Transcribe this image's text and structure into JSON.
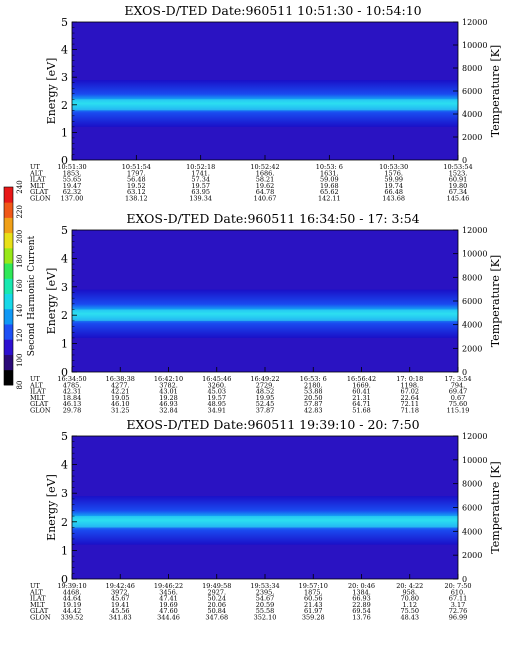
{
  "figure": {
    "colorbar": {
      "label": "Second Harmonic Current",
      "ticks": [
        "240",
        "220",
        "200",
        "180",
        "160",
        "140",
        "120",
        "100",
        "80"
      ]
    }
  },
  "chart_data": [
    {
      "type": "heatmap",
      "title": "EXOS-D/TED   Date:960511   10:51:30 - 10:54:10",
      "ylabel": "Energy [eV]",
      "ylabel_right": "Temperature [K]",
      "ylim": [
        0,
        5
      ],
      "y_ticks": [
        "0",
        "1",
        "2",
        "3",
        "4",
        "5"
      ],
      "ylim_right": [
        0,
        12000
      ],
      "y_ticks_right": [
        "0",
        "2000",
        "4000",
        "6000",
        "8000",
        "10000",
        "12000"
      ],
      "row_labels": [
        "UT",
        "ALT",
        "ILAT",
        "MLT",
        "GLAT",
        "GLON"
      ],
      "columns": [
        [
          "10:51:30",
          "1853.",
          "55.65",
          "19.47",
          "62.32",
          "137.00"
        ],
        [
          "10:51:54",
          "1797.",
          "56.48",
          "19.52",
          "63.12",
          "138.12"
        ],
        [
          "10:52:18",
          "1741.",
          "57.34",
          "19.57",
          "63.95",
          "139.34"
        ],
        [
          "10:52:42",
          "1686.",
          "58.21",
          "19.62",
          "64.78",
          "140.67"
        ],
        [
          "10:53: 6",
          "1631.",
          "59.09",
          "19.68",
          "65.62",
          "142.11"
        ],
        [
          "10:53:30",
          "1576.",
          "59.99",
          "19.74",
          "66.48",
          "143.68"
        ],
        [
          "10:53:54",
          "1523.",
          "60.91",
          "19.80",
          "67.34",
          "145.46"
        ]
      ]
    },
    {
      "type": "heatmap",
      "title": "EXOS-D/TED   Date:960511   16:34:50 - 17: 3:54",
      "ylabel": "Energy [eV]",
      "ylabel_right": "Temperature [K]",
      "ylim": [
        0,
        5
      ],
      "y_ticks": [
        "0",
        "1",
        "2",
        "3",
        "4",
        "5"
      ],
      "ylim_right": [
        0,
        12000
      ],
      "y_ticks_right": [
        "0",
        "2000",
        "4000",
        "6000",
        "8000",
        "10000",
        "12000"
      ],
      "row_labels": [
        "UT",
        "ALT",
        "ILAT",
        "MLT",
        "GLAT",
        "GLON"
      ],
      "columns": [
        [
          "16:34:50",
          "4785.",
          "42.31",
          "18.84",
          "46.13",
          "29.78"
        ],
        [
          "16:38:38",
          "4277.",
          "42.21",
          "19.05",
          "46.10",
          "31.25"
        ],
        [
          "16:42:10",
          "3782.",
          "43.01",
          "19.28",
          "46.93",
          "32.84"
        ],
        [
          "16:45:46",
          "3260.",
          "45.03",
          "19.57",
          "48.95",
          "34.91"
        ],
        [
          "16:49:22",
          "2729.",
          "48.52",
          "19.95",
          "52.45",
          "37.87"
        ],
        [
          "16:53: 6",
          "2180.",
          "53.88",
          "20.50",
          "57.87",
          "42.83"
        ],
        [
          "16:56:42",
          "1669.",
          "60.41",
          "21.31",
          "64.71",
          "51.68"
        ],
        [
          "17: 0:18",
          "1198.",
          "67.02",
          "22.64",
          "72.11",
          "71.18"
        ],
        [
          "17: 3:54",
          "794.",
          "69.47",
          "0.67",
          "75.60",
          "115.19"
        ]
      ]
    },
    {
      "type": "heatmap",
      "title": "EXOS-D/TED   Date:960511   19:39:10 - 20: 7:50",
      "ylabel": "Energy [eV]",
      "ylabel_right": "Temperature [K]",
      "ylim": [
        0,
        5
      ],
      "y_ticks": [
        "0",
        "1",
        "2",
        "3",
        "4",
        "5"
      ],
      "ylim_right": [
        0,
        12000
      ],
      "y_ticks_right": [
        "0",
        "2000",
        "4000",
        "6000",
        "8000",
        "10000",
        "12000"
      ],
      "row_labels": [
        "UT",
        "ALT",
        "ILAT",
        "MLT",
        "GLAT",
        "GLON"
      ],
      "columns": [
        [
          "19:39:10",
          "4468.",
          "44.64",
          "19.19",
          "44.42",
          "339.52"
        ],
        [
          "19:42:46",
          "3972.",
          "45.67",
          "19.41",
          "45.56",
          "341.83"
        ],
        [
          "19:46:22",
          "3456.",
          "47.41",
          "19.69",
          "47.60",
          "344.46"
        ],
        [
          "19:49:58",
          "2927.",
          "50.24",
          "20.06",
          "50.84",
          "347.68"
        ],
        [
          "19:53:34",
          "2395.",
          "54.67",
          "20.59",
          "55.58",
          "352.10"
        ],
        [
          "19:57:10",
          "1875.",
          "60.56",
          "21.43",
          "61.97",
          "359.28"
        ],
        [
          "20: 0:46",
          "1384.",
          "66.93",
          "22.89",
          "69.54",
          "13.76"
        ],
        [
          "20: 4:22",
          "958.",
          "70.80",
          "1.12",
          "75.50",
          "48.43"
        ],
        [
          "20: 7:50",
          "610.",
          "67.11",
          "3.17",
          "72.76",
          "96.99"
        ]
      ]
    }
  ]
}
